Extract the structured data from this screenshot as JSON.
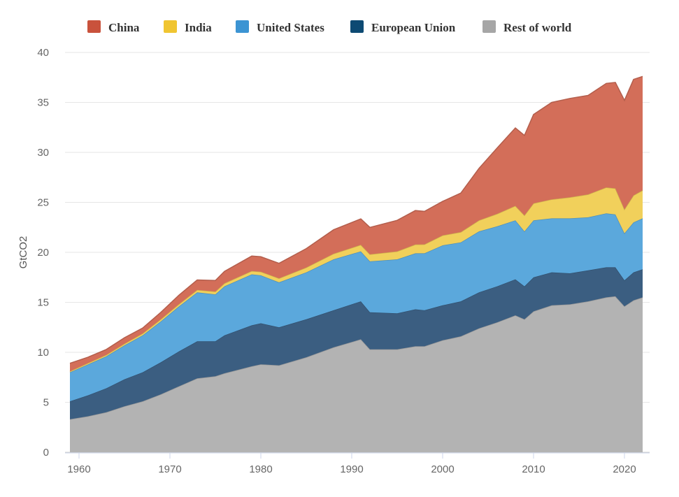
{
  "chart_data": {
    "type": "area",
    "stacked": true,
    "ylabel": "GtCO2",
    "xlabel": "",
    "title": "",
    "ylim": [
      0,
      40
    ],
    "xlim": [
      1959,
      2022
    ],
    "yticks": [
      0,
      5,
      10,
      15,
      20,
      25,
      30,
      35,
      40
    ],
    "xticks": [
      1960,
      1970,
      1980,
      1990,
      2000,
      2010,
      2020
    ],
    "grid": "horizontal",
    "legend_position": "top",
    "x": [
      1959,
      1961,
      1963,
      1965,
      1967,
      1969,
      1971,
      1973,
      1975,
      1976,
      1979,
      1980,
      1982,
      1985,
      1988,
      1991,
      1992,
      1995,
      1997,
      1998,
      2000,
      2002,
      2004,
      2006,
      2008,
      2009,
      2010,
      2012,
      2014,
      2016,
      2018,
      2019,
      2020,
      2021,
      2022
    ],
    "series": [
      {
        "name": "Rest of world",
        "color": "#b3b3b3",
        "values": [
          3.3,
          3.6,
          4.0,
          4.6,
          5.1,
          5.8,
          6.6,
          7.4,
          7.6,
          7.9,
          8.6,
          8.8,
          8.7,
          9.5,
          10.5,
          11.3,
          10.3,
          10.3,
          10.6,
          10.6,
          11.2,
          11.6,
          12.4,
          13.0,
          13.7,
          13.3,
          14.1,
          14.7,
          14.8,
          15.1,
          15.5,
          15.6,
          14.6,
          15.2,
          15.5
        ]
      },
      {
        "name": "European Union",
        "color": "#3b5e81",
        "values": [
          1.8,
          2.1,
          2.4,
          2.7,
          2.9,
          3.2,
          3.5,
          3.7,
          3.5,
          3.8,
          4.1,
          4.1,
          3.8,
          3.8,
          3.7,
          3.8,
          3.7,
          3.6,
          3.7,
          3.6,
          3.5,
          3.5,
          3.6,
          3.6,
          3.6,
          3.3,
          3.4,
          3.3,
          3.1,
          3.1,
          3.0,
          2.9,
          2.6,
          2.8,
          2.8
        ]
      },
      {
        "name": "United States",
        "color": "#5ba8dc",
        "values": [
          2.9,
          3.1,
          3.2,
          3.4,
          3.7,
          4.1,
          4.5,
          4.9,
          4.7,
          4.9,
          5.1,
          4.8,
          4.5,
          4.7,
          5.1,
          5.0,
          5.1,
          5.4,
          5.6,
          5.7,
          6.0,
          5.9,
          6.1,
          6.0,
          5.9,
          5.5,
          5.7,
          5.4,
          5.5,
          5.3,
          5.4,
          5.3,
          4.7,
          5.0,
          5.1
        ]
      },
      {
        "name": "India",
        "color": "#f1d05b",
        "values": [
          0.1,
          0.12,
          0.14,
          0.16,
          0.18,
          0.2,
          0.22,
          0.24,
          0.28,
          0.3,
          0.33,
          0.36,
          0.4,
          0.48,
          0.56,
          0.65,
          0.7,
          0.8,
          0.88,
          0.9,
          1.0,
          1.03,
          1.1,
          1.25,
          1.45,
          1.6,
          1.7,
          1.9,
          2.1,
          2.3,
          2.6,
          2.6,
          2.4,
          2.7,
          2.8
        ]
      },
      {
        "name": "China",
        "color": "#d36e59",
        "values": [
          0.8,
          0.6,
          0.55,
          0.6,
          0.55,
          0.7,
          0.9,
          1.0,
          1.1,
          1.2,
          1.5,
          1.5,
          1.5,
          1.9,
          2.4,
          2.6,
          2.7,
          3.1,
          3.4,
          3.3,
          3.4,
          3.9,
          5.2,
          6.6,
          7.8,
          8.0,
          8.9,
          9.7,
          9.9,
          9.9,
          10.4,
          10.6,
          10.9,
          11.6,
          11.4
        ]
      }
    ]
  },
  "legend": {
    "items": [
      {
        "label": "China",
        "color": "#c9523c"
      },
      {
        "label": "India",
        "color": "#f0c531"
      },
      {
        "label": "United States",
        "color": "#3c94d3"
      },
      {
        "label": "European Union",
        "color": "#0d4a73"
      },
      {
        "label": "Rest of world",
        "color": "#a6a6a6"
      }
    ]
  }
}
